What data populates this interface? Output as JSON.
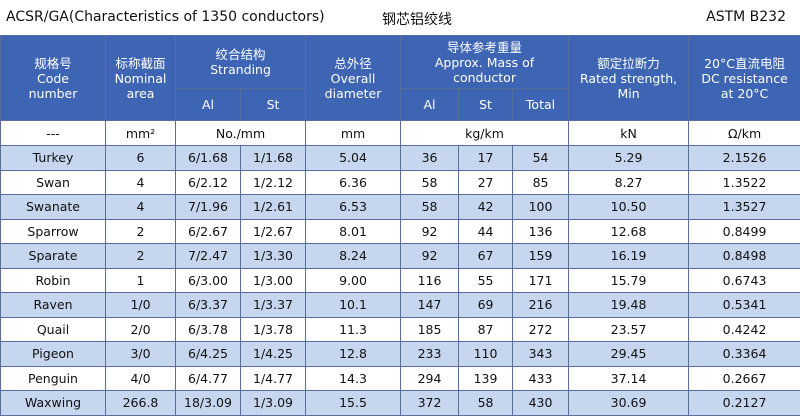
{
  "header": {
    "title": "ACSR/GA(Characteristics of 1350 conductors)",
    "title_cn": "钢芯铝绞线",
    "standard": "ASTM B232"
  },
  "table": {
    "columns": [
      {
        "lines": [
          "规格号",
          "Code",
          "number"
        ]
      },
      {
        "lines": [
          "标称截面",
          "Nominal",
          "area"
        ]
      },
      {
        "lines": [
          "绞合结构",
          "Stranding"
        ]
      },
      {
        "lines": [
          "总外径",
          "Overall",
          "diameter"
        ]
      },
      {
        "lines": [
          "导体参考重量",
          "Approx. Mass of",
          "conductor"
        ]
      },
      {
        "lines": [
          "额定拉断力",
          "Rated strength,",
          "Min"
        ]
      },
      {
        "lines": [
          "20°C直流电阻",
          "DC resistance",
          "at 20°C"
        ]
      }
    ],
    "subheaders": [
      "Al",
      "St",
      "Al",
      "St",
      "Total"
    ],
    "units": [
      "---",
      "mm²",
      "No./mm",
      "mm",
      "kg/km",
      "kN",
      "Ω/km"
    ],
    "rows": [
      [
        "Turkey",
        "6",
        "6/1.68",
        "1/1.68",
        "5.04",
        "36",
        "17",
        "54",
        "5.29",
        "2.1526"
      ],
      [
        "Swan",
        "4",
        "6/2.12",
        "1/2.12",
        "6.36",
        "58",
        "27",
        "85",
        "8.27",
        "1.3522"
      ],
      [
        "Swanate",
        "4",
        "7/1.96",
        "1/2.61",
        "6.53",
        "58",
        "42",
        "100",
        "10.50",
        "1.3527"
      ],
      [
        "Sparrow",
        "2",
        "6/2.67",
        "1/2.67",
        "8.01",
        "92",
        "44",
        "136",
        "12.68",
        "0.8499"
      ],
      [
        "Sparate",
        "2",
        "7/2.47",
        "1/3.30",
        "8.24",
        "92",
        "67",
        "159",
        "16.19",
        "0.8498"
      ],
      [
        "Robin",
        "1",
        "6/3.00",
        "1/3.00",
        "9.00",
        "116",
        "55",
        "171",
        "15.79",
        "0.6743"
      ],
      [
        "Raven",
        "1/0",
        "6/3.37",
        "1/3.37",
        "10.1",
        "147",
        "69",
        "216",
        "19.48",
        "0.5341"
      ],
      [
        "Quail",
        "2/0",
        "6/3.78",
        "1/3.78",
        "11.3",
        "185",
        "87",
        "272",
        "23.57",
        "0.4242"
      ],
      [
        "Pigeon",
        "3/0",
        "6/4.25",
        "1/4.25",
        "12.8",
        "233",
        "110",
        "343",
        "29.45",
        "0.3364"
      ],
      [
        "Penguin",
        "4/0",
        "6/4.77",
        "1/4.77",
        "14.3",
        "294",
        "139",
        "433",
        "37.14",
        "0.2667"
      ],
      [
        "Waxwing",
        "266.8",
        "18/3.09",
        "1/3.09",
        "15.5",
        "372",
        "58",
        "430",
        "30.69",
        "0.2127"
      ]
    ]
  }
}
